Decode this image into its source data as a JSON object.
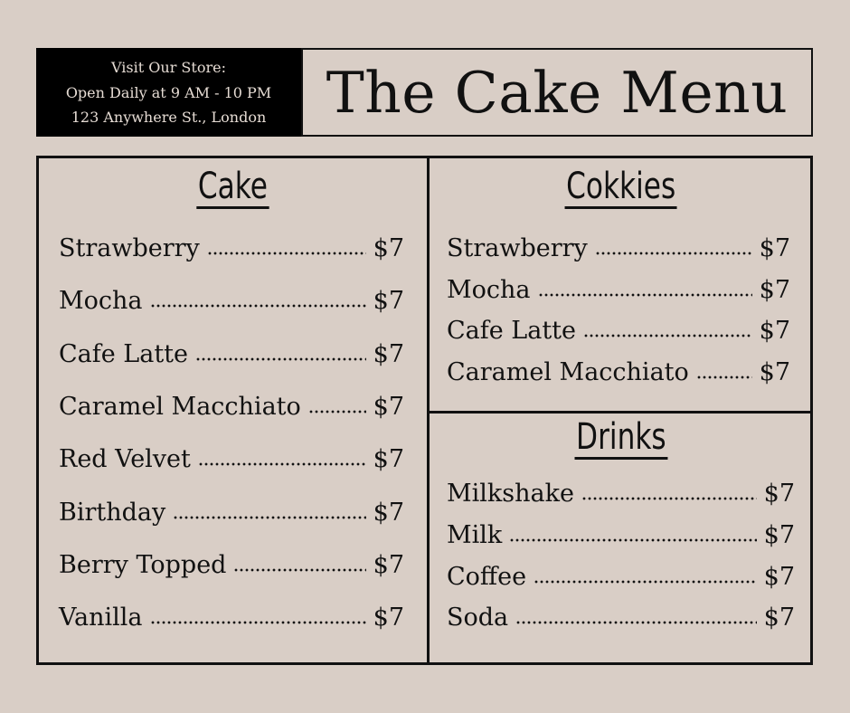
{
  "store_info": {
    "line1": "Visit Our Store:",
    "line2": "Open Daily at 9 AM - 10 PM",
    "line3": "123 Anywhere St., London"
  },
  "title": "The Cake Menu",
  "sections": {
    "cake": {
      "heading": "Cake",
      "items": [
        {
          "name": "Strawberry",
          "price": "$7"
        },
        {
          "name": "Mocha",
          "price": "$7"
        },
        {
          "name": "Cafe Latte",
          "price": "$7"
        },
        {
          "name": "Caramel Macchiato",
          "price": "$7"
        },
        {
          "name": "Red Velvet",
          "price": "$7"
        },
        {
          "name": "Birthday",
          "price": "$7"
        },
        {
          "name": "Berry Topped",
          "price": "$7"
        },
        {
          "name": "Vanilla",
          "price": "$7"
        }
      ]
    },
    "cookies": {
      "heading": "Cokkies",
      "items": [
        {
          "name": "Strawberry",
          "price": "$7"
        },
        {
          "name": "Mocha",
          "price": "$7"
        },
        {
          "name": "Cafe Latte",
          "price": "$7"
        },
        {
          "name": "Caramel Macchiato",
          "price": "$7"
        }
      ]
    },
    "drinks": {
      "heading": "Drinks",
      "items": [
        {
          "name": "Milkshake",
          "price": "$7"
        },
        {
          "name": "Milk",
          "price": "$7"
        },
        {
          "name": "Coffee",
          "price": "$7"
        },
        {
          "name": "Soda",
          "price": "$7"
        }
      ]
    }
  }
}
